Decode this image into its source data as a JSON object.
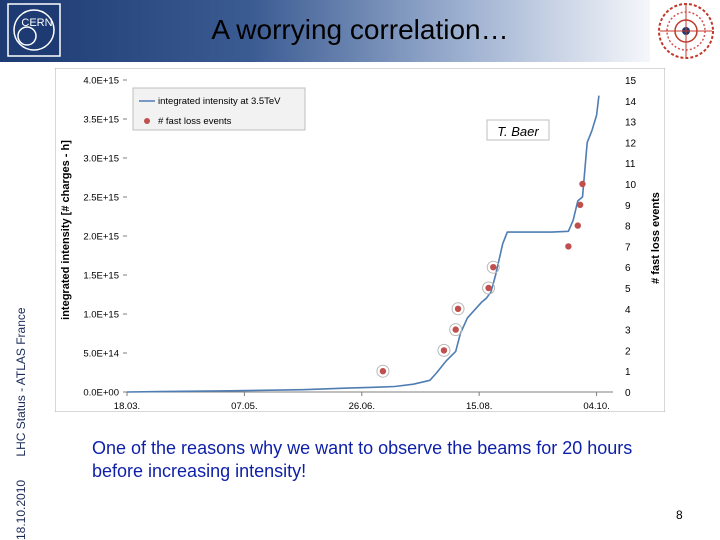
{
  "slide": {
    "title": "A worrying correlation…",
    "logo_text": "CERN",
    "side_date": "18.10.2010",
    "side_text": "LHC Status - ATLAS France",
    "note": "One of the reasons why we want to observe the beams for 20 hours before increasing intensity!",
    "page_number": "8"
  },
  "chart_data": {
    "type": "line",
    "ylabel": "integrated intensity [# charges - h]",
    "y2label": "# fast loss events",
    "ylim": [
      0,
      4000000000000000.0
    ],
    "y2lim": [
      0,
      15
    ],
    "xlim": [
      "18.03.",
      "11.10."
    ],
    "xticks": [
      "18.03.",
      "07.05.",
      "26.06.",
      "15.08.",
      "04.10."
    ],
    "yticks": [
      "0.0E+00",
      "5.0E+14",
      "1.0E+15",
      "1.5E+15",
      "2.0E+15",
      "2.5E+15",
      "3.0E+15",
      "3.5E+15",
      "4.0E+15"
    ],
    "y2ticks": [
      "0",
      "1",
      "2",
      "3",
      "4",
      "5",
      "6",
      "7",
      "8",
      "9",
      "10",
      "11",
      "12",
      "13",
      "14",
      "15"
    ],
    "annotation": "T. Baer",
    "grid": false,
    "legend": {
      "position": "top-left",
      "items": [
        "integrated intensity at 3.5TeV",
        "# fast loss events"
      ]
    },
    "colors": {
      "line": "#4f7db3",
      "points": "#c0504d"
    },
    "series": [
      {
        "name": "integrated intensity at 3.5TeV",
        "axis": "left",
        "points": [
          [
            "18.03.",
            0
          ],
          [
            "01.04.",
            5000000000000.0
          ],
          [
            "01.05.",
            15000000000000.0
          ],
          [
            "01.06.",
            30000000000000.0
          ],
          [
            "20.06.",
            50000000000000.0
          ],
          [
            "01.07.",
            60000000000000.0
          ],
          [
            "10.07.",
            70000000000000.0
          ],
          [
            "18.07.",
            100000000000000.0
          ],
          [
            "25.07.",
            150000000000000.0
          ],
          [
            "28.07.",
            250000000000000.0
          ],
          [
            "01.08.",
            400000000000000.0
          ],
          [
            "05.08.",
            520000000000000.0
          ],
          [
            "07.08.",
            750000000000000.0
          ],
          [
            "10.08.",
            950000000000000.0
          ],
          [
            "13.08.",
            1050000000000000.0
          ],
          [
            "16.08.",
            1150000000000000.0
          ],
          [
            "18.08.",
            1200000000000000.0
          ],
          [
            "20.08.",
            1280000000000000.0
          ],
          [
            "22.08.",
            1500000000000000.0
          ],
          [
            "25.08.",
            1900000000000000.0
          ],
          [
            "27.08.",
            2050000000000000.0
          ],
          [
            "05.09.",
            2050000000000000.0
          ],
          [
            "15.09.",
            2050000000000000.0
          ],
          [
            "22.09.",
            2060000000000000.0
          ],
          [
            "24.09.",
            2200000000000000.0
          ],
          [
            "26.09.",
            2450000000000000.0
          ],
          [
            "28.09.",
            2500000000000000.0
          ],
          [
            "30.09.",
            3200000000000000.0
          ],
          [
            "02.10.",
            3350000000000000.0
          ],
          [
            "04.10.",
            3550000000000000.0
          ],
          [
            "05.10.",
            3800000000000000.0
          ]
        ]
      },
      {
        "name": "# fast loss events",
        "axis": "right",
        "points": [
          [
            "05.07.",
            1
          ],
          [
            "31.07.",
            2
          ],
          [
            "05.08.",
            3
          ],
          [
            "06.08.",
            4
          ],
          [
            "19.08.",
            5
          ],
          [
            "21.08.",
            6
          ],
          [
            "22.09.",
            7
          ],
          [
            "26.09.",
            8
          ],
          [
            "27.09.",
            9
          ],
          [
            "28.09.",
            10
          ]
        ]
      }
    ],
    "highlighted_points": [
      "05.07.",
      "31.07.",
      "05.08.",
      "06.08.",
      "19.08.",
      "21.08."
    ]
  }
}
